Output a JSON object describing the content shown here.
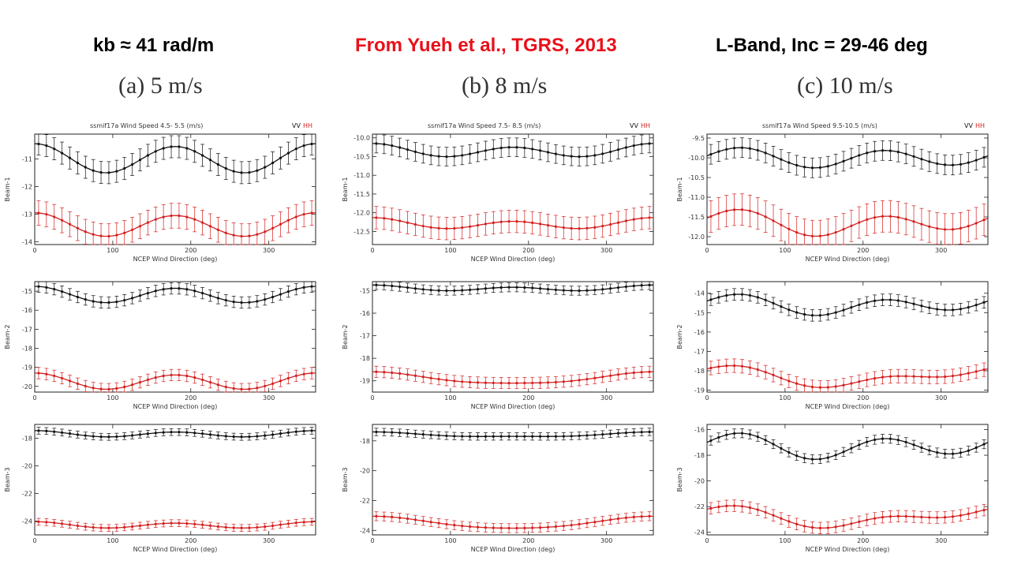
{
  "header": {
    "left": "kb ≈ 41 rad/m",
    "center": "From Yueh et al., TGRS, 2013",
    "right": "L-Band, Inc = 29-46 deg"
  },
  "colors": {
    "vv": "#111111",
    "hh": "#d42020",
    "center_header": "#e8101a"
  },
  "chart_data": [
    {
      "type": "line",
      "panel_title": "(a) 5 m/s",
      "plot_title": "ssmif17a Wind Speed  4.5- 5.5 (m/s)",
      "legend": [
        "VV",
        "HH"
      ],
      "xlabel": "NCEP Wind Direction (deg)",
      "xlim": [
        0,
        360
      ],
      "xticks": [
        0,
        100,
        200,
        300
      ],
      "subplots": [
        {
          "ylabel": "Beam-1",
          "ylim": [
            -14.1,
            -10.1
          ],
          "yticks": [
            -11,
            -12,
            -13,
            -14
          ],
          "yticklabels": [
            "-11",
            "-12",
            "-13",
            "-14"
          ],
          "vv": {
            "mean": -11.0,
            "amp1": 0.05,
            "ph1": 0,
            "amp2": 0.5,
            "ph2": 0,
            "err": 0.4
          },
          "hh": {
            "mean": -13.4,
            "amp1": 0.05,
            "ph1": 0,
            "amp2": 0.4,
            "ph2": 0,
            "err": 0.45
          }
        },
        {
          "ylabel": "Beam-2",
          "ylim": [
            -20.3,
            -14.5
          ],
          "yticks": [
            -15,
            -16,
            -17,
            -18,
            -19,
            -20
          ],
          "yticklabels": [
            "-15",
            "-16",
            "-17",
            "-18",
            "-19",
            "-20"
          ],
          "vv": {
            "mean": -15.2,
            "amp1": 0.05,
            "ph1": 0,
            "amp2": 0.4,
            "ph2": 0,
            "err": 0.3
          },
          "hh": {
            "mean": -19.75,
            "amp1": 0.05,
            "ph1": 0,
            "amp2": 0.4,
            "ph2": 0,
            "err": 0.3
          }
        },
        {
          "ylabel": "Beam-3",
          "ylim": [
            -25.0,
            -17.0
          ],
          "yticks": [
            -18,
            -20,
            -22,
            -24
          ],
          "yticklabels": [
            "-18",
            "-20",
            "-22",
            "-24"
          ],
          "vv": {
            "mean": -17.7,
            "amp1": 0.05,
            "ph1": 0,
            "amp2": 0.2,
            "ph2": 0,
            "err": 0.25
          },
          "hh": {
            "mean": -24.3,
            "amp1": 0.05,
            "ph1": 0,
            "amp2": 0.2,
            "ph2": 0,
            "err": 0.25
          }
        }
      ]
    },
    {
      "type": "line",
      "panel_title": "(b) 8 m/s",
      "plot_title": "ssmif17a Wind Speed  7.5- 8.5 (m/s)",
      "legend": [
        "VV",
        "HH"
      ],
      "xlabel": "NCEP Wind Direction (deg)",
      "xlim": [
        0,
        360
      ],
      "xticks": [
        0,
        100,
        200,
        300
      ],
      "subplots": [
        {
          "ylabel": "Beam-1",
          "ylim": [
            -12.85,
            -9.9
          ],
          "yticks": [
            -10.0,
            -10.5,
            -11.0,
            -11.5,
            -12.0,
            -12.5
          ],
          "yticklabels": [
            "-10.0",
            "-10.5",
            "-11.0",
            "-11.5",
            "-12.0",
            "-12.5"
          ],
          "vv": {
            "mean": -10.35,
            "amp1": 0.05,
            "ph1": 0,
            "amp2": 0.15,
            "ph2": 0,
            "err": 0.25
          },
          "hh": {
            "mean": -12.3,
            "amp1": 0.05,
            "ph1": 0,
            "amp2": 0.12,
            "ph2": 0,
            "err": 0.3
          }
        },
        {
          "ylabel": "Beam-2",
          "ylim": [
            -19.5,
            -14.6
          ],
          "yticks": [
            -15,
            -16,
            -17,
            -18,
            -19
          ],
          "yticklabels": [
            "-15",
            "-16",
            "-17",
            "-18",
            "-19"
          ],
          "vv": {
            "mean": -14.9,
            "amp1": 0.05,
            "ph1": 0,
            "amp2": 0.1,
            "ph2": 0,
            "err": 0.2
          },
          "hh": {
            "mean": -18.9,
            "amp1": 0.25,
            "ph1": 0,
            "amp2": 0.05,
            "ph2": 0,
            "err": 0.25
          }
        },
        {
          "ylabel": "Beam-3",
          "ylim": [
            -24.3,
            -16.9
          ],
          "yticks": [
            -18,
            -20,
            -22,
            -24
          ],
          "yticklabels": [
            "-18",
            "-20",
            "-22",
            "-24"
          ],
          "vv": {
            "mean": -17.6,
            "amp1": 0.15,
            "ph1": 0,
            "amp2": 0.05,
            "ph2": 0,
            "err": 0.25
          },
          "hh": {
            "mean": -23.5,
            "amp1": 0.4,
            "ph1": 0,
            "amp2": 0.05,
            "ph2": 0,
            "err": 0.3
          }
        }
      ]
    },
    {
      "type": "line",
      "panel_title": "(c) 10 m/s",
      "plot_title": "ssmif17a Wind Speed  9.5-10.5 (m/s)",
      "legend": [
        "VV",
        "HH"
      ],
      "xlabel": "NCEP Wind Direction (deg)",
      "xlim": [
        0,
        360
      ],
      "xticks": [
        0,
        100,
        200,
        300
      ],
      "subplots": [
        {
          "ylabel": "Beam-1",
          "ylim": [
            -12.2,
            -9.4
          ],
          "yticks": [
            -9.5,
            -10.0,
            -10.5,
            -11.0,
            -11.5,
            -12.0
          ],
          "yticklabels": [
            "-9.5",
            "-10.0",
            "-10.5",
            "-11.0",
            "-11.5",
            "-12.0"
          ],
          "vv": {
            "mean": -10.0,
            "amp1": 0.05,
            "ph1": 0,
            "amp2": 0.22,
            "ph2": 1.5708,
            "err": 0.25
          },
          "hh": {
            "mean": -11.65,
            "amp1": 0.12,
            "ph1": 0,
            "amp2": 0.25,
            "ph2": 1.5708,
            "err": 0.4
          }
        },
        {
          "ylabel": "Beam-2",
          "ylim": [
            -19.1,
            -13.4
          ],
          "yticks": [
            -14,
            -15,
            -16,
            -17,
            -18,
            -19
          ],
          "yticklabels": [
            "-14",
            "-15",
            "-16",
            "-17",
            "-18",
            "-19"
          ],
          "vv": {
            "mean": -14.6,
            "amp1": 0.2,
            "ph1": 0,
            "amp2": 0.4,
            "ph2": 1.5708,
            "err": 0.3
          },
          "hh": {
            "mean": -18.3,
            "amp1": 0.4,
            "ph1": 0,
            "amp2": 0.25,
            "ph2": 1.5708,
            "err": 0.35
          }
        },
        {
          "ylabel": "Beam-3",
          "ylim": [
            -24.2,
            -15.6
          ],
          "yticks": [
            -16,
            -18,
            -20,
            -22,
            -24
          ],
          "yticklabels": [
            "-16",
            "-18",
            "-20",
            "-22",
            "-24"
          ],
          "vv": {
            "mean": -17.3,
            "amp1": 0.3,
            "ph1": 0,
            "amp2": 0.8,
            "ph2": 1.5708,
            "err": 0.35
          },
          "hh": {
            "mean": -22.8,
            "amp1": 0.6,
            "ph1": 0,
            "amp2": 0.4,
            "ph2": 1.5708,
            "err": 0.45
          }
        }
      ]
    }
  ]
}
